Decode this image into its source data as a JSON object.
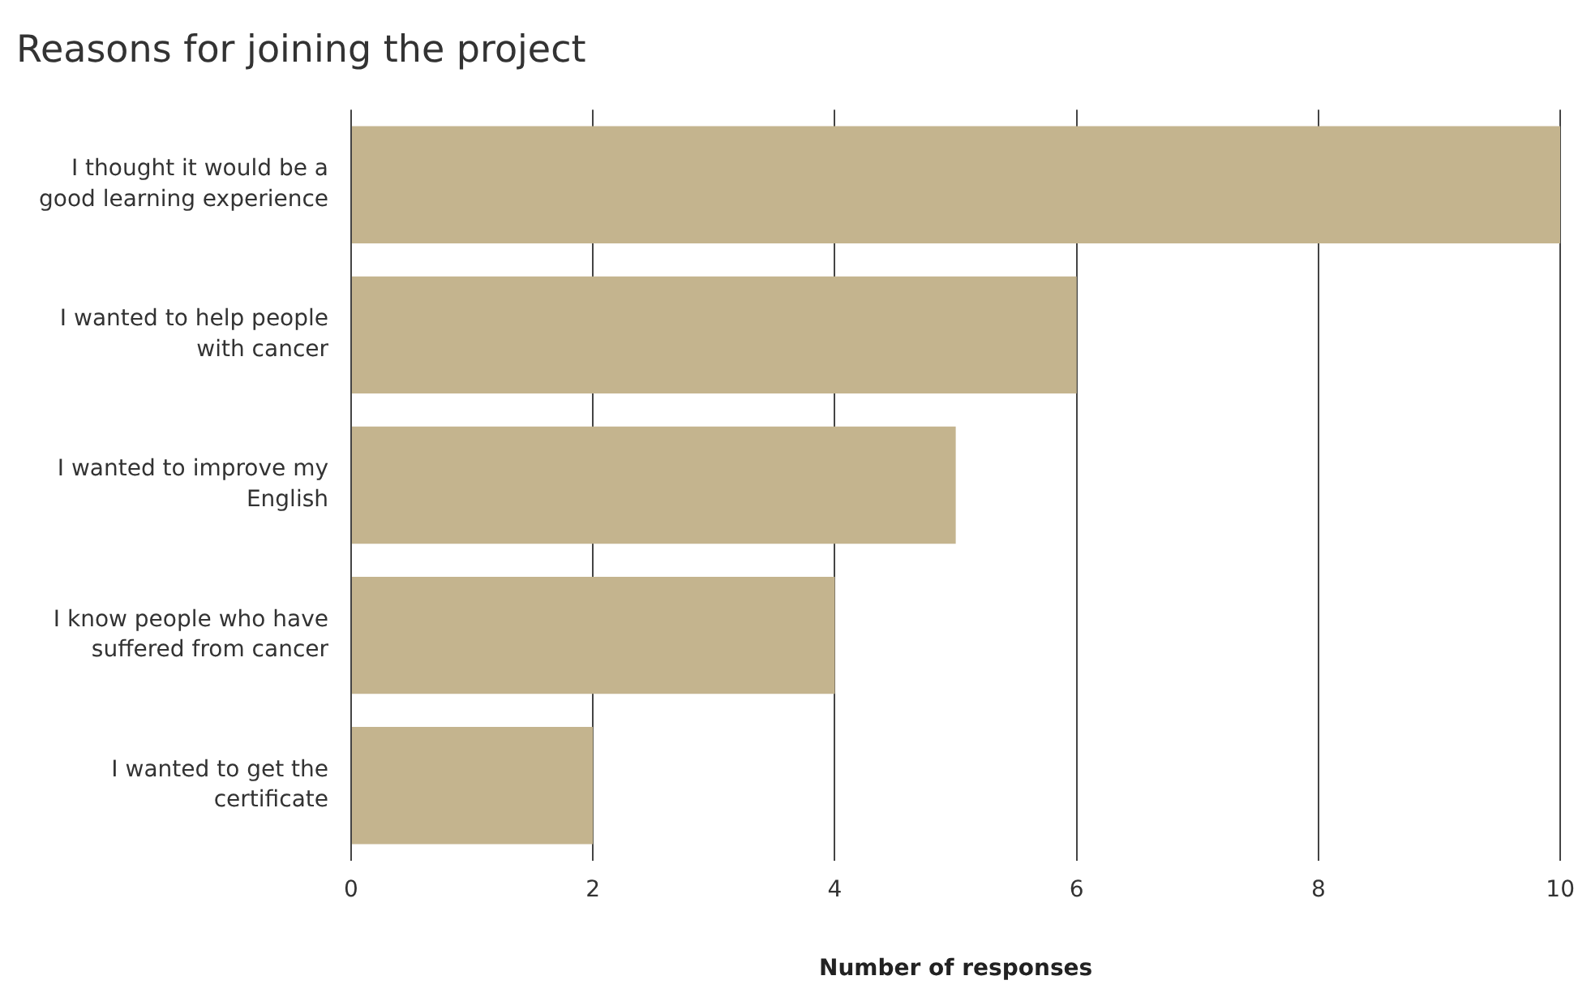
{
  "chart_data": {
    "type": "bar",
    "orientation": "horizontal",
    "title": "Reasons for joining the project",
    "xlabel": "Number of responses",
    "categories": [
      "I thought it would be a good learning experience",
      "I wanted to help people with cancer",
      "I wanted to improve my English",
      "I know people who have suffered from cancer",
      "I wanted to get the certificate"
    ],
    "values": [
      10,
      6,
      5,
      4,
      2
    ],
    "color": "#c4b48e",
    "xlim": [
      0,
      10
    ],
    "xticks": [
      0,
      2,
      4,
      6,
      8,
      10
    ],
    "grid": "x",
    "legend": false
  }
}
